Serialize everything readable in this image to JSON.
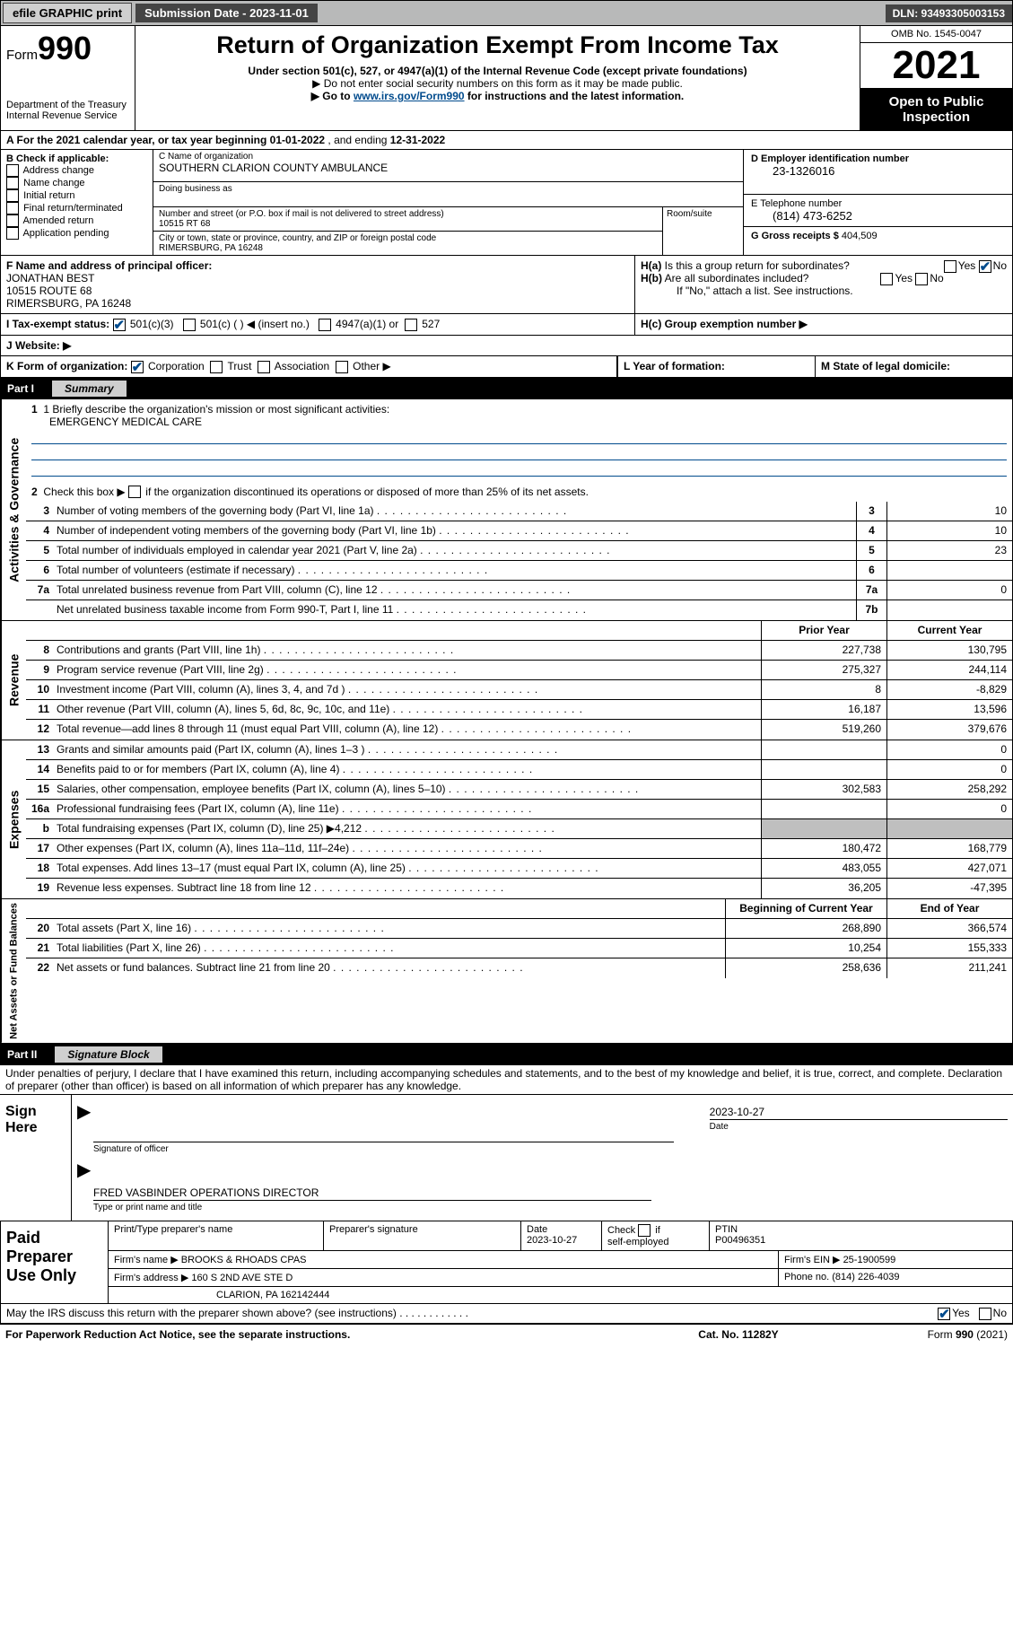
{
  "topbar": {
    "efile": "efile GRAPHIC print",
    "submission_label": "Submission Date - 2023-11-01",
    "dln_label": "DLN: 93493305003153"
  },
  "header": {
    "form_prefix": "Form",
    "form_number": "990",
    "dept": "Department of the Treasury",
    "irs": "Internal Revenue Service",
    "title": "Return of Organization Exempt From Income Tax",
    "sub1": "Under section 501(c), 527, or 4947(a)(1) of the Internal Revenue Code (except private foundations)",
    "sub2": "▶ Do not enter social security numbers on this form as it may be made public.",
    "sub3_pre": "▶ Go to ",
    "sub3_link": "www.irs.gov/Form990",
    "sub3_post": " for instructions and the latest information.",
    "omb": "OMB No. 1545-0047",
    "year": "2021",
    "open": "Open to Public Inspection"
  },
  "lineA": {
    "pre": "A For the 2021 calendar year, or tax year beginning ",
    "begin": "01-01-2022",
    "mid": " , and ending ",
    "end": "12-31-2022"
  },
  "boxB": {
    "label": "B Check if applicable:",
    "o1": "Address change",
    "o2": "Name change",
    "o3": "Initial return",
    "o4": "Final return/terminated",
    "o5": "Amended return",
    "o6": "Application pending"
  },
  "boxC": {
    "name_label": "C Name of organization",
    "name": "SOUTHERN CLARION COUNTY AMBULANCE",
    "dba_label": "Doing business as",
    "street_label": "Number and street (or P.O. box if mail is not delivered to street address)",
    "room_label": "Room/suite",
    "street": "10515 RT 68",
    "city_label": "City or town, state or province, country, and ZIP or foreign postal code",
    "city": "RIMERSBURG, PA  16248"
  },
  "boxD": {
    "label": "D Employer identification number",
    "value": "23-1326016"
  },
  "boxE": {
    "label": "E Telephone number",
    "value": "(814) 473-6252"
  },
  "boxG": {
    "label": "G Gross receipts $",
    "value": "404,509"
  },
  "boxF": {
    "label": "F Name and address of principal officer:",
    "name": "JONATHAN BEST",
    "street": "10515 ROUTE 68",
    "city": "RIMERSBURG, PA  16248"
  },
  "boxH": {
    "a_label": "H(a)  Is this a group return for subordinates?",
    "b_label": "H(b)  Are all subordinates included?",
    "b_note": "If \"No,\" attach a list. See instructions.",
    "c_label": "H(c)  Group exemption number ▶",
    "yes": "Yes",
    "no": "No"
  },
  "boxI": {
    "label": "I    Tax-exempt status:",
    "o1": "501(c)(3)",
    "o2": "501(c) (   ) ◀ (insert no.)",
    "o3": "4947(a)(1) or",
    "o4": "527"
  },
  "boxJ": {
    "label": "J    Website: ▶"
  },
  "boxK": {
    "label": "K Form of organization:",
    "o1": "Corporation",
    "o2": "Trust",
    "o3": "Association",
    "o4": "Other ▶"
  },
  "boxL": {
    "label": "L Year of formation:"
  },
  "boxM": {
    "label": "M State of legal domicile:"
  },
  "partI": {
    "tag": "Part I",
    "title": "Summary",
    "sideA": "Activities & Governance",
    "sideB": "Revenue",
    "sideC": "Expenses",
    "sideD": "Net Assets or Fund Balances",
    "q1_label": "1  Briefly describe the organization's mission or most significant activities:",
    "q1_value": "EMERGENCY MEDICAL CARE",
    "q2": "Check this box ▶        if the organization discontinued its operations or disposed of more than 25% of its net assets.",
    "prior_hdr": "Prior Year",
    "curr_hdr": "Current Year",
    "boy_hdr": "Beginning of Current Year",
    "eoy_hdr": "End of Year",
    "rows_gov": [
      {
        "n": "3",
        "t": "Number of voting members of the governing body (Part VI, line 1a)",
        "a": "3",
        "b": "10"
      },
      {
        "n": "4",
        "t": "Number of independent voting members of the governing body (Part VI, line 1b)",
        "a": "4",
        "b": "10"
      },
      {
        "n": "5",
        "t": "Total number of individuals employed in calendar year 2021 (Part V, line 2a)",
        "a": "5",
        "b": "23"
      },
      {
        "n": "6",
        "t": "Total number of volunteers (estimate if necessary)",
        "a": "6",
        "b": ""
      },
      {
        "n": "7a",
        "t": "Total unrelated business revenue from Part VIII, column (C), line 12",
        "a": "7a",
        "b": "0"
      },
      {
        "n": "",
        "t": "Net unrelated business taxable income from Form 990-T, Part I, line 11",
        "a": "7b",
        "b": ""
      }
    ],
    "rows_rev": [
      {
        "n": "8",
        "t": "Contributions and grants (Part VIII, line 1h)",
        "p": "227,738",
        "c": "130,795"
      },
      {
        "n": "9",
        "t": "Program service revenue (Part VIII, line 2g)",
        "p": "275,327",
        "c": "244,114"
      },
      {
        "n": "10",
        "t": "Investment income (Part VIII, column (A), lines 3, 4, and 7d )",
        "p": "8",
        "c": "-8,829"
      },
      {
        "n": "11",
        "t": "Other revenue (Part VIII, column (A), lines 5, 6d, 8c, 9c, 10c, and 11e)",
        "p": "16,187",
        "c": "13,596"
      },
      {
        "n": "12",
        "t": "Total revenue—add lines 8 through 11 (must equal Part VIII, column (A), line 12)",
        "p": "519,260",
        "c": "379,676"
      }
    ],
    "rows_exp": [
      {
        "n": "13",
        "t": "Grants and similar amounts paid (Part IX, column (A), lines 1–3 )",
        "p": "",
        "c": "0"
      },
      {
        "n": "14",
        "t": "Benefits paid to or for members (Part IX, column (A), line 4)",
        "p": "",
        "c": "0"
      },
      {
        "n": "15",
        "t": "Salaries, other compensation, employee benefits (Part IX, column (A), lines 5–10)",
        "p": "302,583",
        "c": "258,292"
      },
      {
        "n": "16a",
        "t": "Professional fundraising fees (Part IX, column (A), line 11e)",
        "p": "",
        "c": "0"
      },
      {
        "n": "b",
        "t": "Total fundraising expenses (Part IX, column (D), line 25) ▶4,212",
        "p": "SHADE",
        "c": "SHADE"
      },
      {
        "n": "17",
        "t": "Other expenses (Part IX, column (A), lines 11a–11d, 11f–24e)",
        "p": "180,472",
        "c": "168,779"
      },
      {
        "n": "18",
        "t": "Total expenses. Add lines 13–17 (must equal Part IX, column (A), line 25)",
        "p": "483,055",
        "c": "427,071"
      },
      {
        "n": "19",
        "t": "Revenue less expenses. Subtract line 18 from line 12",
        "p": "36,205",
        "c": "-47,395"
      }
    ],
    "rows_net": [
      {
        "n": "20",
        "t": "Total assets (Part X, line 16)",
        "p": "268,890",
        "c": "366,574"
      },
      {
        "n": "21",
        "t": "Total liabilities (Part X, line 26)",
        "p": "10,254",
        "c": "155,333"
      },
      {
        "n": "22",
        "t": "Net assets or fund balances. Subtract line 21 from line 20",
        "p": "258,636",
        "c": "211,241"
      }
    ]
  },
  "partII": {
    "tag": "Part II",
    "title": "Signature Block",
    "decl": "Under penalties of perjury, I declare that I have examined this return, including accompanying schedules and statements, and to the best of my knowledge and belief, it is true, correct, and complete. Declaration of preparer (other than officer) is based on all information of which preparer has any knowledge.",
    "sign_here": "Sign Here",
    "sig_officer": "Signature of officer",
    "sig_date": "Date",
    "sig_date_val": "2023-10-27",
    "name_title": "FRED VASBINDER  OPERATIONS DIRECTOR",
    "name_title_cap": "Type or print name and title"
  },
  "prep": {
    "label": "Paid Preparer Use Only",
    "h1": "Print/Type preparer's name",
    "h2": "Preparer's signature",
    "h3": "Date",
    "h3v": "2023-10-27",
    "h4": "Check        if self-employed",
    "h5": "PTIN",
    "h5v": "P00496351",
    "firm_name_l": "Firm's name    ▶",
    "firm_name": "BROOKS & RHOADS CPAS",
    "firm_ein_l": "Firm's EIN ▶",
    "firm_ein": "25-1900599",
    "firm_addr_l": "Firm's address ▶",
    "firm_addr1": "160 S 2ND AVE STE D",
    "firm_addr2": "CLARION, PA  162142444",
    "phone_l": "Phone no.",
    "phone": "(814) 226-4039"
  },
  "discuss": {
    "text": "May the IRS discuss this return with the preparer shown above? (see instructions)",
    "yes": "Yes",
    "no": "No"
  },
  "footer": {
    "a": "For Paperwork Reduction Act Notice, see the separate instructions.",
    "b": "Cat. No. 11282Y",
    "c_pre": "Form ",
    "c_form": "990",
    "c_post": " (2021)"
  }
}
